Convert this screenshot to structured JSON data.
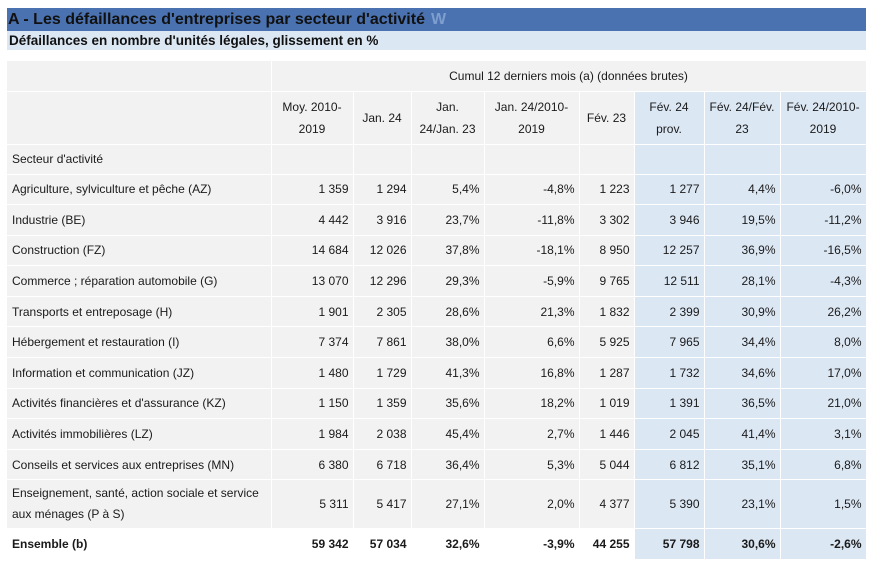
{
  "title": "A - Les défaillances d'entreprises par secteur d'activité",
  "title_mark": "W",
  "subtitle": "Défaillances en nombre d'unités légales, glissement en %",
  "table": {
    "group_header": "Cumul 12 derniers mois (a) (données brutes)",
    "columns": [
      "Moy. 2010-2019",
      "Jan. 24",
      "Jan. 24/Jan. 23",
      "Jan. 24/2010-2019",
      "Fév. 23",
      "Fév. 24 prov.",
      "Fév. 24/Fév. 23",
      "Fév. 24/2010-2019"
    ],
    "section_label": "Secteur d'activité",
    "rows": [
      {
        "label": "Agriculture, sylviculture et pêche (AZ)",
        "values": [
          "1 359",
          "1 294",
          "5,4%",
          "-4,8%",
          "1 223",
          "1 277",
          "4,4%",
          "-6,0%"
        ]
      },
      {
        "label": "Industrie (BE)",
        "values": [
          "4 442",
          "3 916",
          "23,7%",
          "-11,8%",
          "3 302",
          "3 946",
          "19,5%",
          "-11,2%"
        ]
      },
      {
        "label": "Construction (FZ)",
        "values": [
          "14 684",
          "12 026",
          "37,8%",
          "-18,1%",
          "8 950",
          "12 257",
          "36,9%",
          "-16,5%"
        ]
      },
      {
        "label": "Commerce ; réparation automobile (G)",
        "values": [
          "13 070",
          "12 296",
          "29,3%",
          "-5,9%",
          "9 765",
          "12 511",
          "28,1%",
          "-4,3%"
        ]
      },
      {
        "label": "Transports et entreposage (H)",
        "values": [
          "1 901",
          "2 305",
          "28,6%",
          "21,3%",
          "1 832",
          "2 399",
          "30,9%",
          "26,2%"
        ]
      },
      {
        "label": "Hébergement et restauration (I)",
        "values": [
          "7 374",
          "7 861",
          "38,0%",
          "6,6%",
          "5 925",
          "7 965",
          "34,4%",
          "8,0%"
        ]
      },
      {
        "label": "Information et communication (JZ)",
        "values": [
          "1 480",
          "1 729",
          "41,3%",
          "16,8%",
          "1 287",
          "1 732",
          "34,6%",
          "17,0%"
        ]
      },
      {
        "label": "Activités financières et d'assurance (KZ)",
        "values": [
          "1 150",
          "1 359",
          "35,6%",
          "18,2%",
          "1 019",
          "1 391",
          "36,5%",
          "21,0%"
        ]
      },
      {
        "label": "Activités immobilières (LZ)",
        "values": [
          "1 984",
          "2 038",
          "45,4%",
          "2,7%",
          "1 446",
          "2 045",
          "41,4%",
          "3,1%"
        ]
      },
      {
        "label": "Conseils et services aux entreprises (MN)",
        "values": [
          "6 380",
          "6 718",
          "36,4%",
          "5,3%",
          "5 044",
          "6 812",
          "35,1%",
          "6,8%"
        ]
      },
      {
        "label": "Enseignement, santé, action sociale et service aux ménages (P à S)",
        "values": [
          "5 311",
          "5 417",
          "27,1%",
          "2,0%",
          "4 377",
          "5 390",
          "23,1%",
          "1,5%"
        ]
      }
    ],
    "total": {
      "label": "Ensemble (b)",
      "values": [
        "59 342",
        "57 034",
        "32,6%",
        "-3,9%",
        "44 255",
        "57 798",
        "30,6%",
        "-2,6%"
      ]
    },
    "highlight_color": "#dce7f4",
    "title_bar_color": "#4a72b0"
  }
}
